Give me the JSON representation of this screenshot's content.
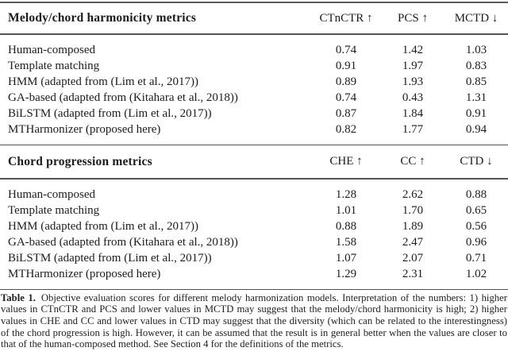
{
  "page": {
    "background": "#ffffff",
    "text_color": "#1c1c1c",
    "rule_color": "#555555"
  },
  "table": {
    "sections": [
      {
        "title": "Melody/chord harmonicity metrics",
        "columns": [
          "CTnCTR ↑",
          "PCS ↑",
          "MCTD ↓"
        ],
        "rows": [
          {
            "label": "Human-composed",
            "values": [
              "0.74",
              "1.42",
              "1.03"
            ]
          },
          {
            "label": "Template matching",
            "values": [
              "0.91",
              "1.97",
              "0.83"
            ]
          },
          {
            "label": "HMM (adapted from (Lim et al., 2017))",
            "values": [
              "0.89",
              "1.93",
              "0.85"
            ]
          },
          {
            "label": "GA-based (adapted from (Kitahara et al., 2018))",
            "values": [
              "0.74",
              "0.43",
              "1.31"
            ]
          },
          {
            "label": "BiLSTM (adapted from (Lim et al., 2017))",
            "values": [
              "0.87",
              "1.84",
              "0.91"
            ]
          },
          {
            "label": "MTHarmonizer (proposed here)",
            "values": [
              "0.82",
              "1.77",
              "0.94"
            ]
          }
        ]
      },
      {
        "title": "Chord progression metrics",
        "columns": [
          "CHE ↑",
          "CC ↑",
          "CTD ↓"
        ],
        "rows": [
          {
            "label": "Human-composed",
            "values": [
              "1.28",
              "2.62",
              "0.88"
            ]
          },
          {
            "label": "Template matching",
            "values": [
              "1.01",
              "1.70",
              "0.65"
            ]
          },
          {
            "label": "HMM (adapted from (Lim et al., 2017))",
            "values": [
              "0.88",
              "1.89",
              "0.56"
            ]
          },
          {
            "label": "GA-based (adapted from (Kitahara et al., 2018))",
            "values": [
              "1.58",
              "2.47",
              "0.96"
            ]
          },
          {
            "label": "BiLSTM (adapted from (Lim et al., 2017))",
            "values": [
              "1.07",
              "2.07",
              "0.71"
            ]
          },
          {
            "label": "MTHarmonizer (proposed here)",
            "values": [
              "1.29",
              "2.31",
              "1.02"
            ]
          }
        ]
      }
    ]
  },
  "caption": {
    "label": "Table 1.",
    "text": "Objective evaluation scores for different melody harmonization models. Interpretation of the numbers: 1) higher values in CTnCTR and PCS and lower values in MCTD may suggest that the melody/chord harmonicity is high; 2) higher values in CHE and CC and lower values in CTD may suggest that the diversity (which can be related to the interestingness) of the chord progression is high. However, it can be assumed that the result is in general better when the values are closer to that of the human-composed method. See Section 4 for the definitions of the metrics."
  }
}
